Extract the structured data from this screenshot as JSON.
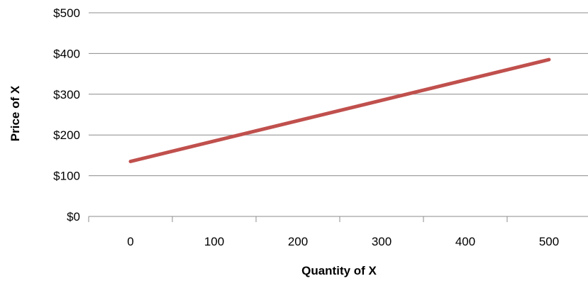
{
  "chart_data": {
    "type": "line",
    "title": "",
    "xlabel": "Quantity of X",
    "ylabel": "Price of X",
    "x_categories": [
      "0",
      "100",
      "200",
      "300",
      "400",
      "500"
    ],
    "y_ticks": [
      0,
      100,
      200,
      300,
      400,
      500
    ],
    "y_tick_labels": [
      "$0",
      "$100",
      "$200",
      "$300",
      "$400",
      "$500"
    ],
    "ylim": [
      0,
      500
    ],
    "series": [
      {
        "color": "#c0504d",
        "x": [
          0,
          500
        ],
        "y": [
          135,
          385
        ]
      }
    ],
    "grid": "horizontal",
    "legend": "none"
  }
}
